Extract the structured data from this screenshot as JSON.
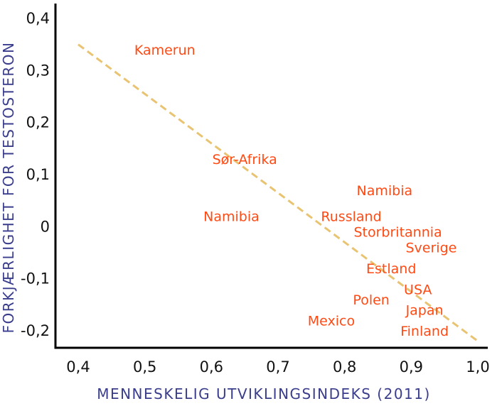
{
  "chart_data": {
    "type": "scatter",
    "title": "",
    "xlabel": "MENNESKELIG UTVIKLINGSINDEKS (2011)",
    "ylabel": "FORKJÆRLIGHET FOR TESTOSTERON",
    "xlim": [
      0.4,
      1.0
    ],
    "ylim": [
      -0.25,
      0.43
    ],
    "x_ticks": [
      {
        "value": 0.4,
        "label": "0,4"
      },
      {
        "value": 0.5,
        "label": "0,5"
      },
      {
        "value": 0.6,
        "label": "0,6"
      },
      {
        "value": 0.7,
        "label": "0,7"
      },
      {
        "value": 0.8,
        "label": "0,8"
      },
      {
        "value": 0.9,
        "label": "0,9"
      },
      {
        "value": 1.0,
        "label": "1,0"
      }
    ],
    "y_ticks": [
      {
        "value": 0.4,
        "label": "0,4"
      },
      {
        "value": 0.3,
        "label": "0,3"
      },
      {
        "value": 0.2,
        "label": "0,2"
      },
      {
        "value": 0.1,
        "label": "0,1"
      },
      {
        "value": 0.0,
        "label": "0"
      },
      {
        "value": -0.1,
        "label": "-0,1"
      },
      {
        "value": -0.2,
        "label": "-0,2"
      }
    ],
    "grid": false,
    "points": [
      {
        "label": "Kamerun",
        "x": 0.53,
        "y": 0.34
      },
      {
        "label": "Sør-Afrika",
        "x": 0.65,
        "y": 0.13
      },
      {
        "label": "Namibia",
        "x": 0.63,
        "y": 0.02
      },
      {
        "label": "Namibia",
        "x": 0.86,
        "y": 0.07
      },
      {
        "label": "Russland",
        "x": 0.81,
        "y": 0.02
      },
      {
        "label": "Storbritannia",
        "x": 0.88,
        "y": -0.01
      },
      {
        "label": "Sverige",
        "x": 0.93,
        "y": -0.04
      },
      {
        "label": "Estland",
        "x": 0.87,
        "y": -0.08
      },
      {
        "label": "USA",
        "x": 0.91,
        "y": -0.12
      },
      {
        "label": "Polen",
        "x": 0.84,
        "y": -0.14
      },
      {
        "label": "Japan",
        "x": 0.92,
        "y": -0.16
      },
      {
        "label": "Mexico",
        "x": 0.78,
        "y": -0.18
      },
      {
        "label": "Finland",
        "x": 0.92,
        "y": -0.2
      }
    ],
    "trendline": {
      "style": "dashed",
      "from": {
        "x": 0.4,
        "y": 0.35
      },
      "to": {
        "x": 1.0,
        "y": -0.22
      }
    },
    "colors": {
      "point_label": "#ff4a14",
      "trendline": "#e8c472",
      "axis_title": "#3a3d8c",
      "axis": "#000000"
    }
  }
}
